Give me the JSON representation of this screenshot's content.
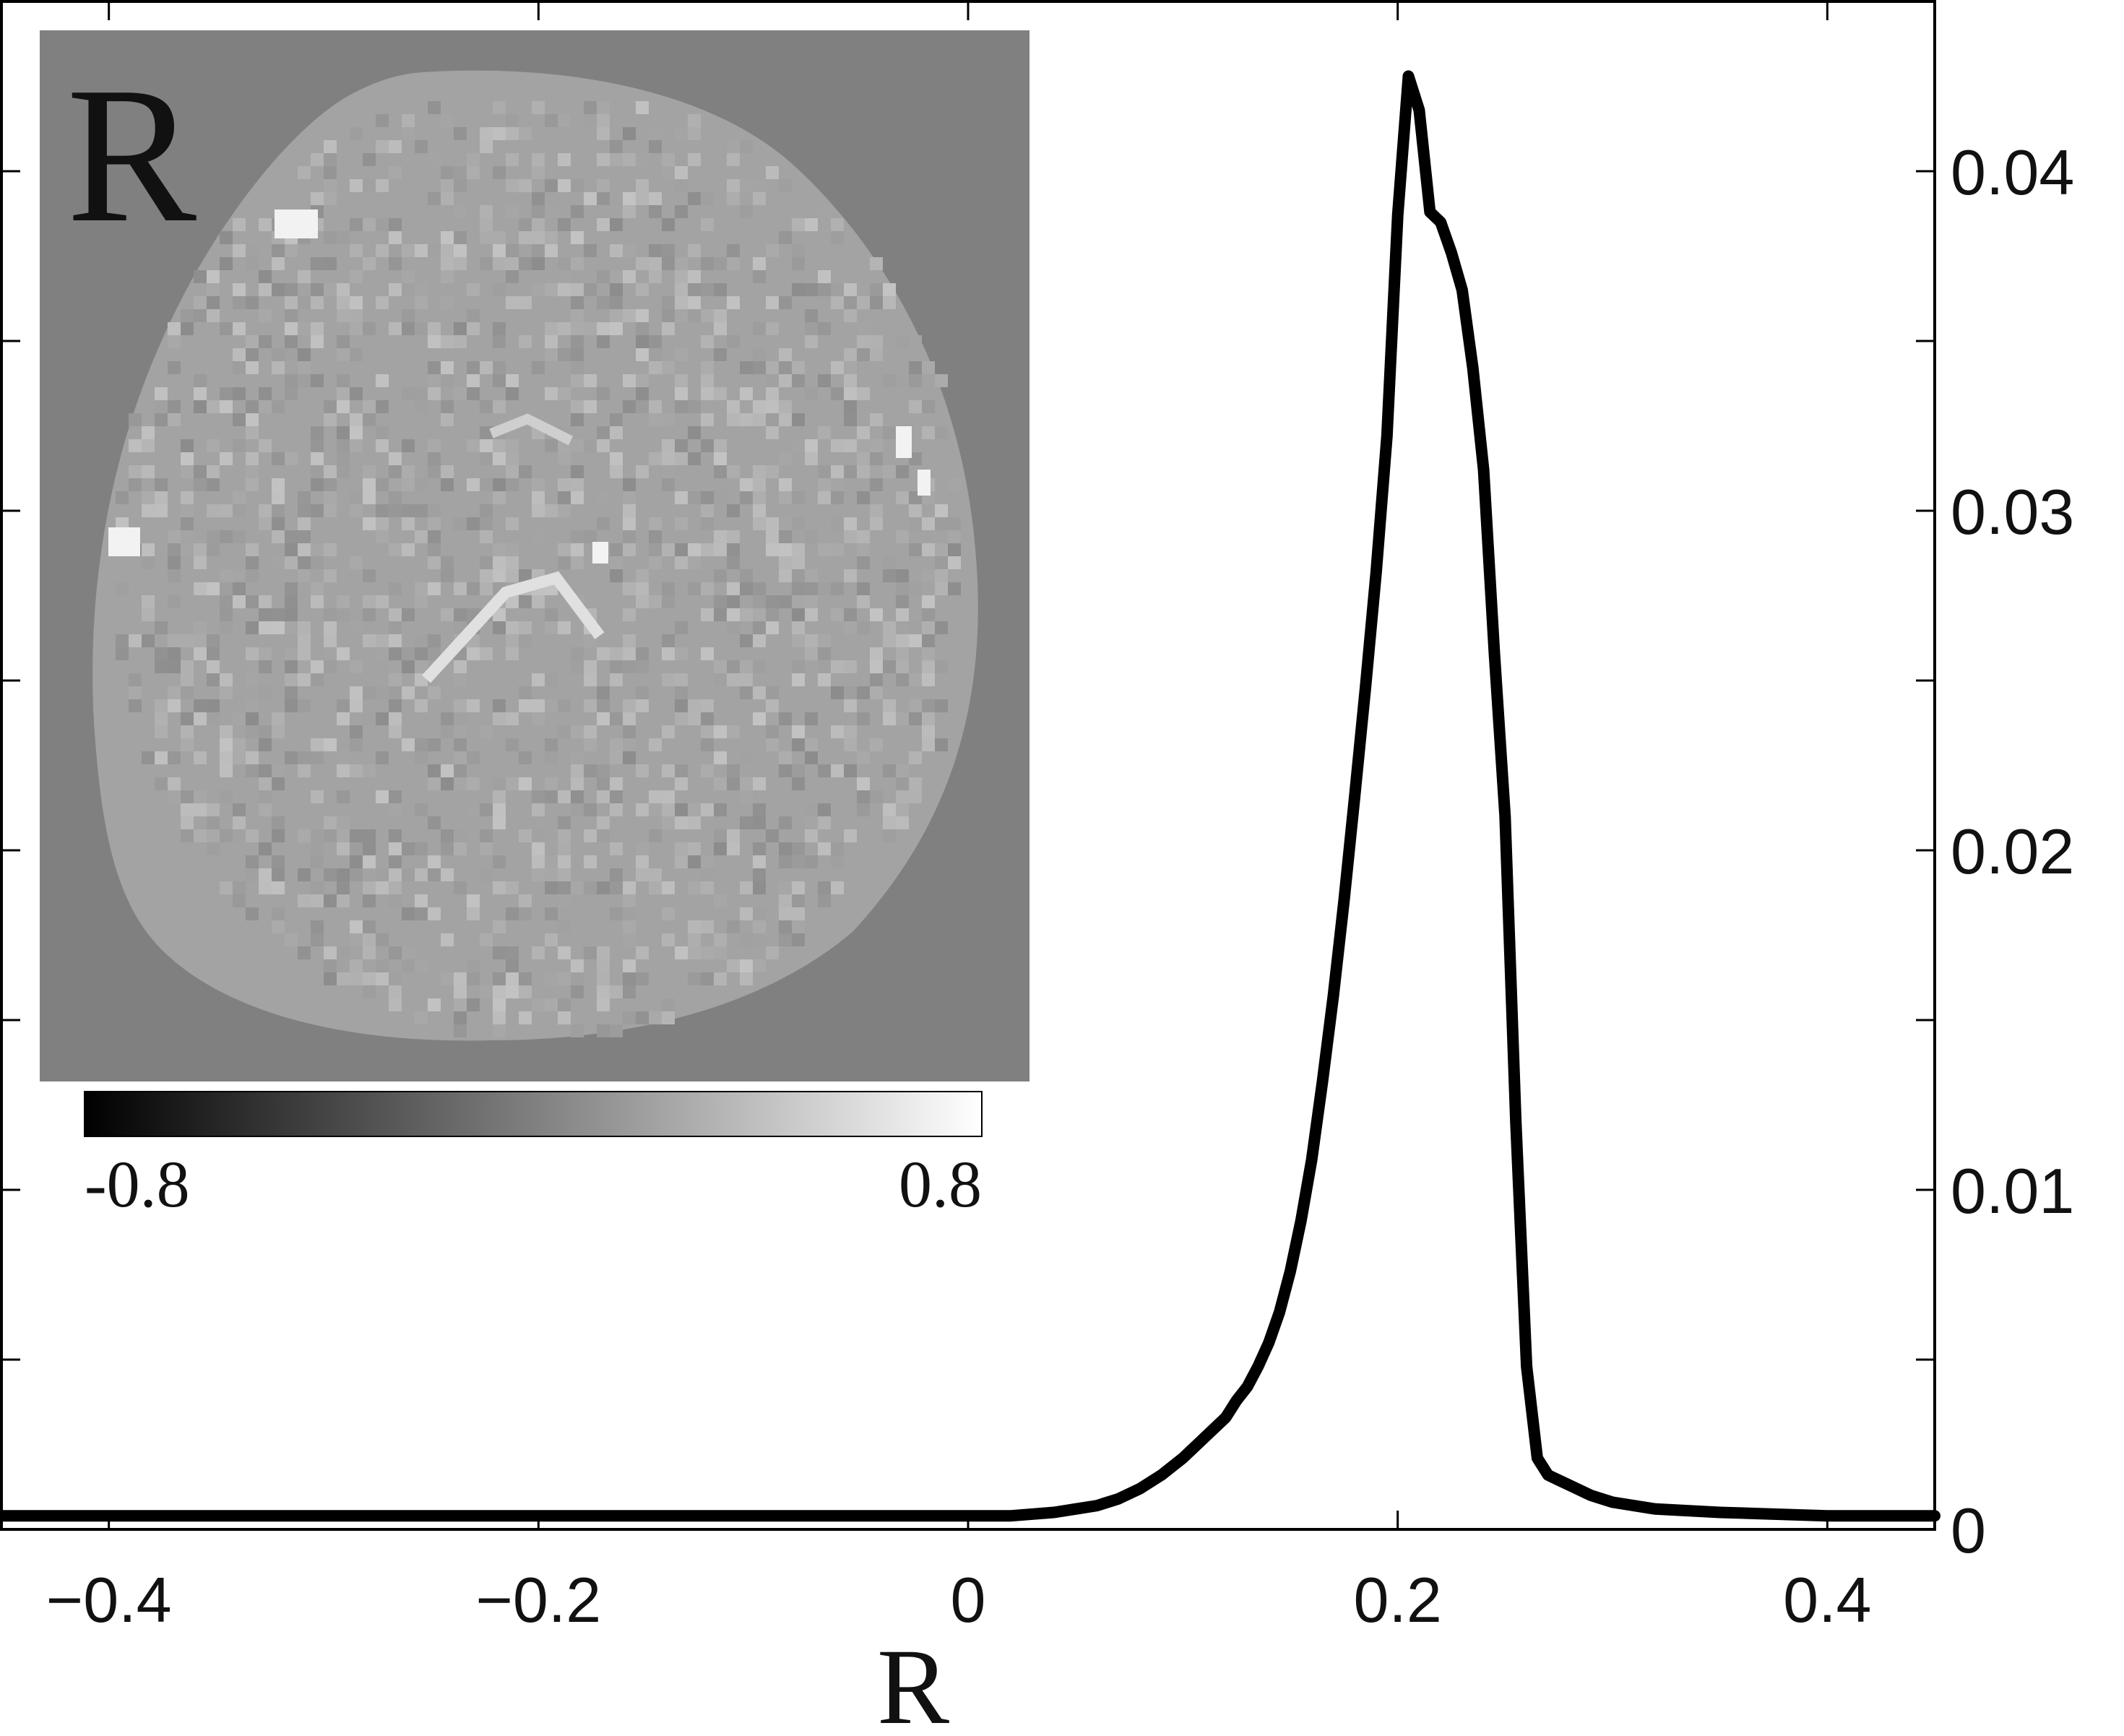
{
  "chart_data": {
    "type": "line",
    "title": "",
    "xlabel": "R",
    "ylabel": "",
    "xlim": [
      -0.45,
      0.45
    ],
    "ylim": [
      0,
      0.045
    ],
    "x_ticks": [
      -0.4,
      -0.2,
      0,
      0.2,
      0.4
    ],
    "x_tick_labels": [
      "−0.4",
      "−0.2",
      "0",
      "0.2",
      "0.4"
    ],
    "y_ticks": [
      0,
      0.01,
      0.02,
      0.03,
      0.04
    ],
    "y_tick_labels": [
      "0",
      "0.01",
      "0.02",
      "0.03",
      "0.04"
    ],
    "y_axis_side": "right",
    "grid": false,
    "legend": "none",
    "line_color": "#000000",
    "series": [
      {
        "x": [
          -0.45,
          -0.4,
          -0.3,
          -0.2,
          -0.1,
          0.0,
          0.02,
          0.04,
          0.05,
          0.06,
          0.07,
          0.08,
          0.09,
          0.1,
          0.11,
          0.12,
          0.125,
          0.13,
          0.135,
          0.14,
          0.145,
          0.15,
          0.155,
          0.16,
          0.165,
          0.17,
          0.175,
          0.18,
          0.185,
          0.19,
          0.195,
          0.2,
          0.205,
          0.21,
          0.215,
          0.22,
          0.225,
          0.23,
          0.235,
          0.24,
          0.245,
          0.25,
          0.255,
          0.26,
          0.265,
          0.27,
          0.28,
          0.29,
          0.3,
          0.32,
          0.35,
          0.4,
          0.45
        ],
        "y": [
          0.0004,
          0.0004,
          0.0004,
          0.0004,
          0.0004,
          0.0004,
          0.0004,
          0.0005,
          0.0006,
          0.0007,
          0.0009,
          0.0012,
          0.0016,
          0.0021,
          0.0027,
          0.0033,
          0.0038,
          0.0042,
          0.0048,
          0.0055,
          0.0064,
          0.0076,
          0.0091,
          0.0109,
          0.0132,
          0.0157,
          0.0185,
          0.0216,
          0.0248,
          0.0282,
          0.0322,
          0.0387,
          0.0428,
          0.0418,
          0.0388,
          0.0385,
          0.0376,
          0.0365,
          0.0342,
          0.0312,
          0.0258,
          0.021,
          0.012,
          0.0048,
          0.0021,
          0.0016,
          0.0013,
          0.001,
          0.0008,
          0.0006,
          0.0005,
          0.0004,
          0.0004
        ]
      }
    ]
  },
  "inset": {
    "panel_letter": "R",
    "colorbar_min_label": "-0.8",
    "colorbar_max_label": "0.8",
    "background_gray": "#808080",
    "brain_gray": "#a3a3a3"
  }
}
